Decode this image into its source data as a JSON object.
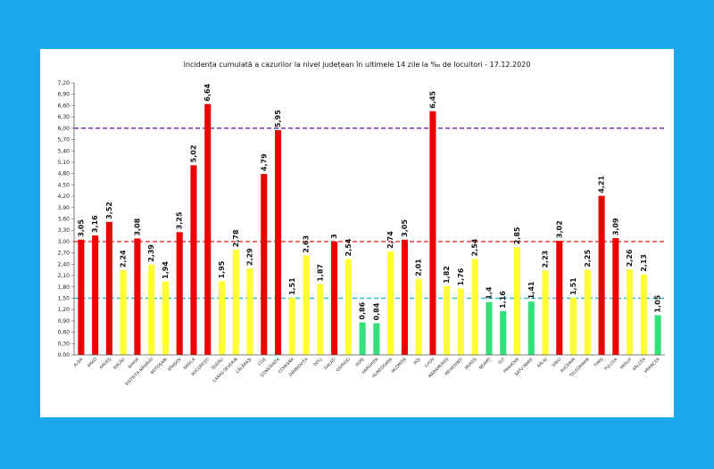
{
  "background_color": "#1aa7ec",
  "colors": {
    "red": "#ee0000",
    "yellow": "#ffff33",
    "green": "#33e07a",
    "line_purple": "#7a1fa2",
    "line_red": "#e03030",
    "line_cyan": "#22b8d8"
  },
  "chart_data": {
    "type": "bar",
    "title": "Incidența cumulată a cazurilor la nivel județean în ultimele 14 zile la ‰ de locuitori - 17.12.2020",
    "xlabel": "",
    "ylabel": "",
    "ylim": [
      0,
      7.2
    ],
    "y_ticks": [
      "0,00",
      "0,30",
      "0,60",
      "0,90",
      "1,20",
      "1,50",
      "1,80",
      "2,10",
      "2,40",
      "2,70",
      "3,00",
      "3,30",
      "3,60",
      "3,90",
      "4,20",
      "4,50",
      "4,80",
      "5,10",
      "5,40",
      "5,70",
      "6,00",
      "6,30",
      "6,60",
      "6,90",
      "7,20"
    ],
    "grid": false,
    "legend": "none",
    "reference_lines": [
      {
        "value": 6.0,
        "color": "line_purple"
      },
      {
        "value": 3.0,
        "color": "line_red"
      },
      {
        "value": 1.5,
        "color": "line_cyan"
      }
    ],
    "categories": [
      "ALBA",
      "ARAD",
      "ARGEȘ",
      "BACĂU",
      "BIHOR",
      "BISTRIȚA-NĂSĂUD",
      "BOTOȘANI",
      "BRAȘOV",
      "BRĂILA",
      "BUCUREȘTI",
      "BUZĂU",
      "CARAȘ-SEVERIN",
      "CĂLĂRAȘI",
      "CLUJ",
      "CONSTANȚA",
      "COVASNA",
      "DÂMBOVIȚA",
      "DOLJ",
      "GALAȚI",
      "GIURGIU",
      "GORJ",
      "HARGHITA",
      "HUNEDOARA",
      "IALOMIȚA",
      "IAȘI",
      "ILFOV",
      "MARAMUREȘ",
      "MEHEDINȚI",
      "MUREȘ",
      "NEAMȚ",
      "OLT",
      "PRAHOVA",
      "SATU MARE",
      "SĂLAJ",
      "SIBIU",
      "SUCEAVA",
      "TELEORMAN",
      "TIMIȘ",
      "TULCEA",
      "VASLUI",
      "VÂLCEA",
      "VRANCEA"
    ],
    "values": [
      3.05,
      3.16,
      3.52,
      2.24,
      3.08,
      2.39,
      1.94,
      3.25,
      5.02,
      6.64,
      1.95,
      2.78,
      2.29,
      4.79,
      5.95,
      1.51,
      2.63,
      1.87,
      3,
      2.54,
      0.86,
      0.84,
      2.74,
      3.05,
      2.01,
      6.45,
      1.82,
      1.76,
      2.54,
      1.4,
      1.16,
      2.85,
      1.41,
      2.23,
      3.02,
      1.51,
      2.25,
      4.21,
      3.09,
      2.26,
      2.13,
      1.05
    ],
    "value_labels": [
      "3,05",
      "3,16",
      "3,52",
      "2,24",
      "3,08",
      "2,39",
      "1,94",
      "3,25",
      "5,02",
      "6,64",
      "1,95",
      "2,78",
      "2,29",
      "4,79",
      "5,95",
      "1,51",
      "2,63",
      "1,87",
      "3",
      "2,54",
      "0,86",
      "0,84",
      "2,74",
      "3,05",
      "2,01",
      "6,45",
      "1,82",
      "1,76",
      "2,54",
      "1,4",
      "1,16",
      "2,85",
      "1,41",
      "2,23",
      "3,02",
      "1,51",
      "2,25",
      "4,21",
      "3,09",
      "2,26",
      "2,13",
      "1,05"
    ]
  }
}
